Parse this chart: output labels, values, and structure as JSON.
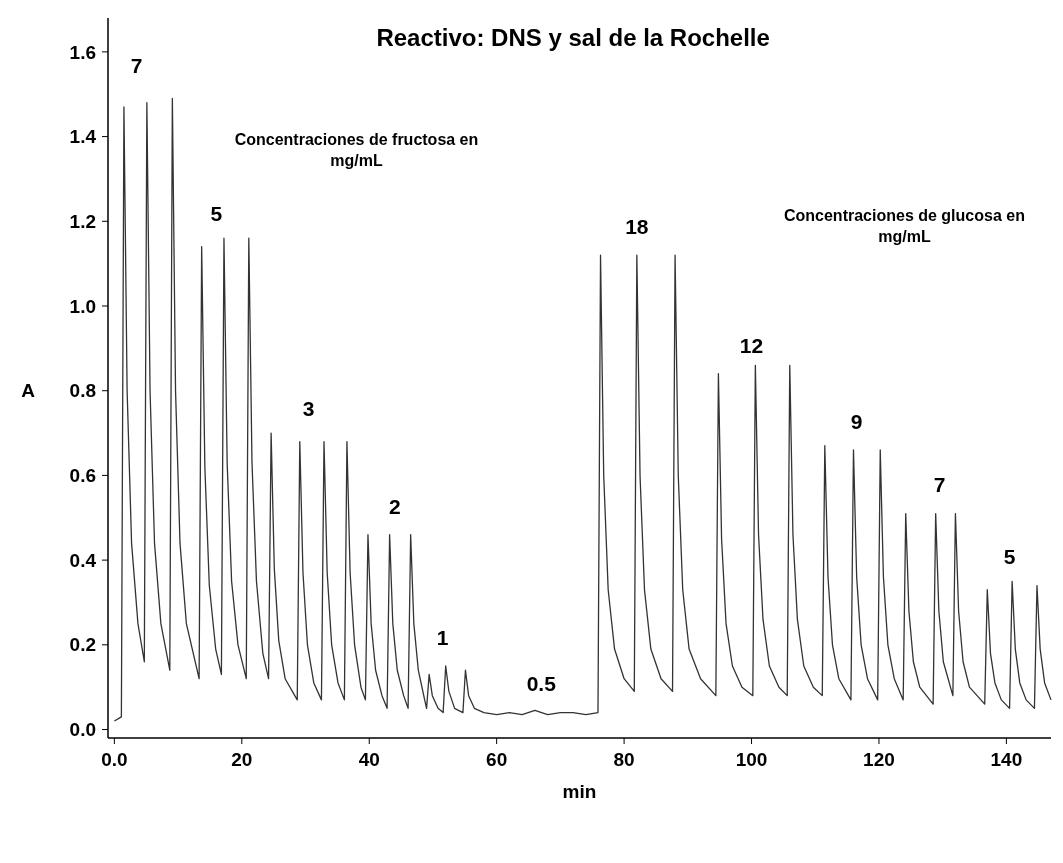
{
  "chart_data": {
    "type": "line",
    "title": "Reactivo: DNS y sal de la Rochelle",
    "xlabel": "min",
    "ylabel": "A",
    "xlim": [
      -1,
      147
    ],
    "ylim": [
      -0.02,
      1.68
    ],
    "xticks": [
      {
        "value": 0,
        "label": "0.0"
      },
      20,
      40,
      60,
      80,
      100,
      120,
      140
    ],
    "yticks": [
      {
        "value": 0,
        "label": "0.0"
      },
      {
        "value": 0.2,
        "label": "0.2"
      },
      {
        "value": 0.4,
        "label": "0.4"
      },
      {
        "value": 0.6,
        "label": "0.6"
      },
      {
        "value": 0.8,
        "label": "0.8"
      },
      {
        "value": 1,
        "label": "1.0"
      },
      {
        "value": 1.2,
        "label": "1.2"
      },
      {
        "value": 1.4,
        "label": "1.4"
      },
      {
        "value": 1.6,
        "label": "1.6"
      }
    ],
    "grid": false,
    "marker": "none",
    "line_style": "solid",
    "annotations": [
      "7",
      "Concentraciones de fructosa en mg/mL",
      "5",
      "3",
      "2",
      "1",
      "0.5",
      "18",
      "Concentraciones de glucosa en mg/mL",
      "12",
      "9",
      "7",
      "5"
    ],
    "series": [
      {
        "color": "#333333",
        "x": [
          0,
          1.1,
          1.5,
          2.0,
          2.7,
          3.7,
          4.7,
          5.1,
          5.6,
          6.3,
          7.3,
          8.7,
          9.1,
          9.6,
          10.3,
          11.3,
          13.3,
          13.7,
          14.2,
          14.9,
          15.9,
          16.8,
          17.2,
          17.7,
          18.4,
          19.4,
          20.7,
          21.1,
          21.6,
          22.3,
          23.3,
          24.2,
          24.6,
          25.1,
          25.8,
          26.8,
          28.7,
          29.1,
          29.6,
          30.3,
          31.3,
          32.5,
          32.9,
          33.4,
          34.1,
          35.1,
          36.1,
          36.5,
          37.0,
          37.7,
          38.7,
          39.4,
          39.8,
          40.3,
          41.0,
          42.0,
          42.8,
          43.2,
          43.7,
          44.4,
          45.4,
          46.1,
          46.5,
          47.0,
          47.7,
          48.7,
          49.0,
          49.4,
          49.9,
          50.8,
          51.6,
          52.0,
          52.5,
          53.4,
          54.7,
          55.1,
          55.6,
          56.5,
          58,
          60,
          62,
          64,
          66,
          68,
          70,
          72,
          74,
          75.9,
          76.3,
          76.8,
          77.5,
          78.5,
          80,
          81.6,
          82.0,
          82.5,
          83.2,
          84.2,
          85.8,
          87.6,
          88.0,
          88.5,
          89.2,
          90.2,
          92,
          94.4,
          94.8,
          95.3,
          96,
          97,
          98.5,
          100.2,
          100.6,
          101.1,
          101.8,
          102.8,
          104.3,
          105.6,
          106.0,
          106.5,
          107.2,
          108.2,
          109.7,
          111.1,
          111.5,
          112,
          112.7,
          113.7,
          115.6,
          116.0,
          116.5,
          117.2,
          118.2,
          119.8,
          120.2,
          120.7,
          121.4,
          122.4,
          123.8,
          124.2,
          124.7,
          125.4,
          126.4,
          128.5,
          128.9,
          129.4,
          130.1,
          131.6,
          132.0,
          132.5,
          133.2,
          134.2,
          136.6,
          137.0,
          137.5,
          138.2,
          139.2,
          140.5,
          140.9,
          141.4,
          142.1,
          143.1,
          144.4,
          144.8,
          145.3,
          146.0,
          147
        ],
        "values": [
          0.02,
          0.03,
          1.47,
          0.8,
          0.44,
          0.25,
          0.16,
          1.48,
          0.8,
          0.44,
          0.25,
          0.14,
          1.49,
          0.8,
          0.44,
          0.25,
          0.12,
          1.14,
          0.62,
          0.34,
          0.19,
          0.13,
          1.16,
          0.63,
          0.35,
          0.2,
          0.12,
          1.16,
          0.63,
          0.35,
          0.18,
          0.12,
          0.7,
          0.38,
          0.21,
          0.12,
          0.07,
          0.68,
          0.37,
          0.2,
          0.11,
          0.07,
          0.68,
          0.37,
          0.2,
          0.11,
          0.07,
          0.68,
          0.37,
          0.2,
          0.1,
          0.07,
          0.46,
          0.25,
          0.14,
          0.08,
          0.05,
          0.46,
          0.25,
          0.14,
          0.08,
          0.05,
          0.46,
          0.25,
          0.14,
          0.07,
          0.05,
          0.13,
          0.08,
          0.05,
          0.04,
          0.15,
          0.09,
          0.05,
          0.04,
          0.14,
          0.08,
          0.05,
          0.04,
          0.035,
          0.04,
          0.035,
          0.045,
          0.035,
          0.04,
          0.04,
          0.035,
          0.04,
          1.12,
          0.6,
          0.33,
          0.19,
          0.12,
          0.09,
          1.12,
          0.6,
          0.33,
          0.19,
          0.12,
          0.09,
          1.12,
          0.6,
          0.33,
          0.19,
          0.12,
          0.08,
          0.84,
          0.45,
          0.25,
          0.15,
          0.1,
          0.08,
          0.86,
          0.46,
          0.26,
          0.15,
          0.1,
          0.08,
          0.86,
          0.46,
          0.26,
          0.15,
          0.1,
          0.08,
          0.67,
          0.36,
          0.2,
          0.12,
          0.07,
          0.66,
          0.36,
          0.2,
          0.12,
          0.07,
          0.66,
          0.36,
          0.2,
          0.12,
          0.07,
          0.51,
          0.28,
          0.16,
          0.1,
          0.06,
          0.51,
          0.28,
          0.16,
          0.08,
          0.51,
          0.28,
          0.16,
          0.1,
          0.06,
          0.33,
          0.18,
          0.11,
          0.07,
          0.05,
          0.35,
          0.19,
          0.11,
          0.07,
          0.05,
          0.34,
          0.19,
          0.11,
          0.07
        ]
      }
    ]
  }
}
